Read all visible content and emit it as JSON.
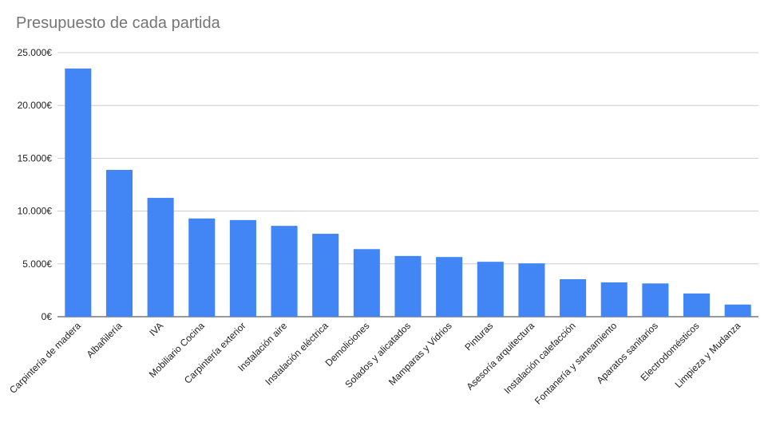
{
  "chart_data": {
    "type": "bar",
    "title": "Presupuesto de cada partida",
    "xlabel": "",
    "ylabel": "",
    "ylim": [
      0,
      25000
    ],
    "yticks": [
      0,
      5000,
      10000,
      15000,
      20000,
      25000
    ],
    "ytick_labels": [
      "0€",
      "5.000€",
      "10.000€",
      "15.000€",
      "20.000€",
      "25.000€"
    ],
    "grid": true,
    "legend": "none",
    "color": "#4285f4",
    "categories": [
      "Carpintería de madera",
      "Albañilería",
      "IVA",
      "Mobiliario Cocina",
      "Carpintería exterior",
      "Instalación aire",
      "Instalación eléctrica",
      "Demoliciones",
      "Solados y alicatados",
      "Mamparas y Vidrios",
      "Pinturas",
      "Asesoría arquitectura",
      "Instalación calefacción",
      "Fontanería y saneamiento",
      "Aparatos sanitarios",
      "Electrodomésticos",
      "Limpieza y Mudanza"
    ],
    "values": [
      23500,
      13900,
      11250,
      9300,
      9150,
      8600,
      7850,
      6400,
      5750,
      5650,
      5200,
      5050,
      3550,
      3250,
      3150,
      2200,
      1150
    ]
  }
}
